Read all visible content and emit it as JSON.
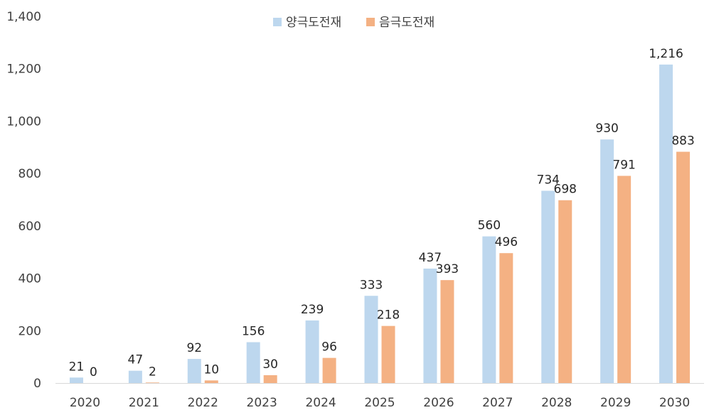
{
  "chart_data": {
    "type": "bar",
    "categories": [
      "2020",
      "2021",
      "2022",
      "2023",
      "2024",
      "2025",
      "2026",
      "2027",
      "2028",
      "2029",
      "2030"
    ],
    "series": [
      {
        "name": "양극도전재",
        "color": "#BDD7EE",
        "values": [
          21,
          47,
          92,
          156,
          239,
          333,
          437,
          560,
          734,
          930,
          1216
        ],
        "labels": [
          "21",
          "47",
          "92",
          "156",
          "239",
          "333",
          "437",
          "560",
          "734",
          "930",
          "1,216"
        ]
      },
      {
        "name": "음극도전재",
        "color": "#F4B183",
        "values": [
          0,
          2,
          10,
          30,
          96,
          218,
          393,
          496,
          698,
          791,
          883
        ],
        "labels": [
          "0",
          "2",
          "10",
          "30",
          "96",
          "218",
          "393",
          "496",
          "698",
          "791",
          "883"
        ]
      }
    ],
    "ylim": [
      0,
      1400
    ],
    "yticks": [
      0,
      200,
      400,
      600,
      800,
      1000,
      1200,
      1400
    ],
    "ytick_labels": [
      "0",
      "200",
      "400",
      "600",
      "800",
      "1,000",
      "1,200",
      "1,400"
    ],
    "legend_position": "top-center",
    "grid": false
  }
}
